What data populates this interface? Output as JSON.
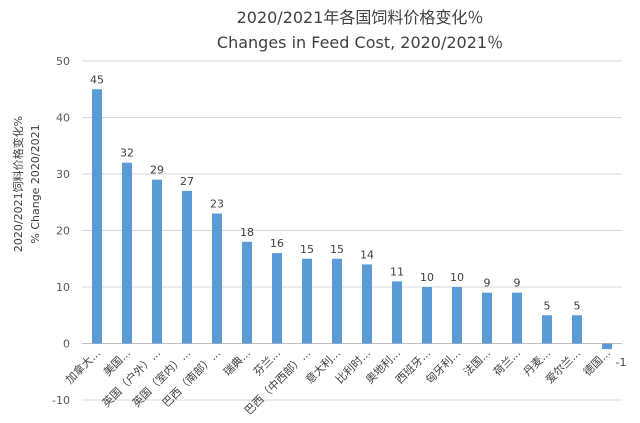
{
  "chart_data": {
    "type": "bar",
    "title_zh": "2020/2021年各国饲料价格变化％",
    "title_en": "Changes in Feed Cost, 2020/2021％",
    "ylabel_zh": "2020/2021饲料价格变化%",
    "ylabel_en": "% Change 2020/2021",
    "xlabel": "",
    "ylim": [
      -10,
      50
    ],
    "yticks": [
      -10,
      0,
      10,
      20,
      30,
      40,
      50
    ],
    "grid": true,
    "legend": "none",
    "bar_color": "#5B9BD5",
    "categories": [
      "加拿大...",
      "美国...",
      "英国（户外）...",
      "英国（室内）...",
      "巴西（南部）...",
      "瑞典...",
      "芬兰...",
      "巴西（中西部）...",
      "意大利...",
      "比利时...",
      "奥地利...",
      "西班牙...",
      "匈牙利...",
      "法国...",
      "荷兰...",
      "丹麦...",
      "爱尔兰...",
      "德国..."
    ],
    "values": [
      45,
      32,
      29,
      27,
      23,
      18,
      16,
      15,
      15,
      14,
      11,
      10,
      10,
      9,
      9,
      5,
      5,
      -1
    ],
    "data_labels": [
      "45",
      "32",
      "29",
      "27",
      "23",
      "18",
      "16",
      "15",
      "15",
      "14",
      "11",
      "10",
      "10",
      "9",
      "9",
      "5",
      "5",
      "-1"
    ]
  }
}
